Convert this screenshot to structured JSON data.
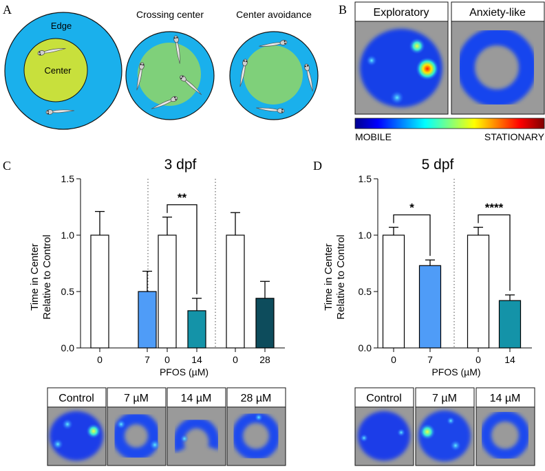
{
  "panels": {
    "A": {
      "letter": "A",
      "arena_labels": {
        "edge": "Edge",
        "center": "Center"
      },
      "titles": [
        "Crossing center",
        "Center avoidance"
      ],
      "colors": {
        "edge": "#1ab0ec",
        "center_lime": "#c8e03c",
        "center_green": "#7fd07a"
      }
    },
    "B": {
      "letter": "B",
      "titles": [
        "Exploratory",
        "Anxiety-like"
      ],
      "scale_labels": {
        "low": "MOBILE",
        "high": "STATIONARY"
      }
    },
    "C": {
      "letter": "C"
    },
    "D": {
      "letter": "D"
    }
  },
  "chart_data": [
    {
      "panel": "C",
      "type": "bar",
      "title": "3 dpf",
      "ylabel_lines": [
        "Time in Center",
        "Relative to Control"
      ],
      "xlabel": "PFOS (µM)",
      "ylim": [
        0,
        1.5
      ],
      "yticks": [
        "0.0",
        "0.5",
        "1.0",
        "1.5"
      ],
      "categories": [
        "0",
        "7",
        "0",
        "14",
        "0",
        "28"
      ],
      "values": [
        1.0,
        0.5,
        1.0,
        0.33,
        1.0,
        0.44
      ],
      "errors": [
        0.21,
        0.18,
        0.16,
        0.11,
        0.2,
        0.15
      ],
      "colors": [
        "#ffffff",
        "#4f9cf7",
        "#ffffff",
        "#1493a8",
        "#ffffff",
        "#0d4c5c"
      ],
      "significance": [
        {
          "from": 2,
          "to": 3,
          "label": "**"
        }
      ],
      "heatmap_labels": [
        "Control",
        "7 µM",
        "14 µM",
        "28 µM"
      ]
    },
    {
      "panel": "D",
      "type": "bar",
      "title": "5 dpf",
      "ylabel_lines": [
        "Time in Center",
        "Relative to Control"
      ],
      "xlabel": "PFOS (µM)",
      "ylim": [
        0,
        1.5
      ],
      "yticks": [
        "0.0",
        "0.5",
        "1.0",
        "1.5"
      ],
      "categories": [
        "0",
        "7",
        "0",
        "14"
      ],
      "values": [
        1.0,
        0.73,
        1.0,
        0.42
      ],
      "errors": [
        0.07,
        0.05,
        0.07,
        0.05
      ],
      "colors": [
        "#ffffff",
        "#4f9cf7",
        "#ffffff",
        "#1493a8"
      ],
      "significance": [
        {
          "from": 0,
          "to": 1,
          "label": "*"
        },
        {
          "from": 2,
          "to": 3,
          "label": "****"
        }
      ],
      "heatmap_labels": [
        "Control",
        "7 µM",
        "14 µM"
      ]
    }
  ]
}
